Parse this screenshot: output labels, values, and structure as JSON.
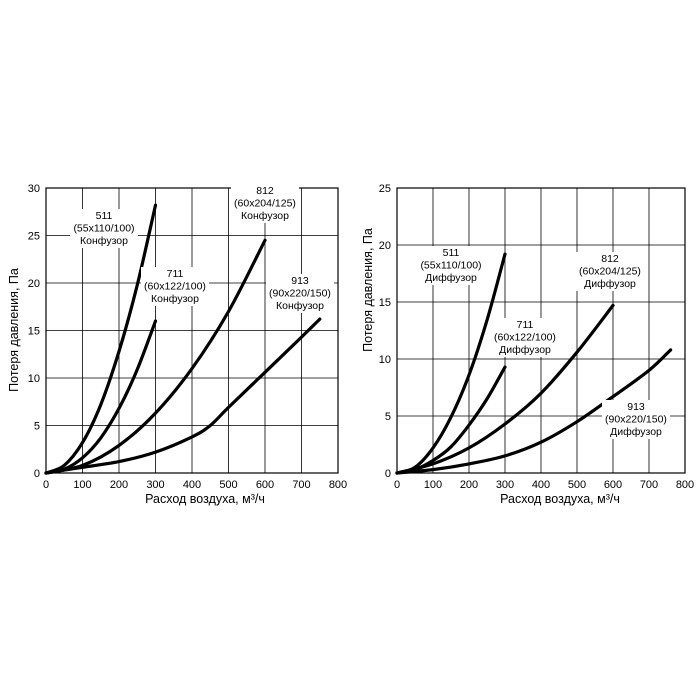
{
  "chart_data": [
    {
      "type": "line",
      "xlabel": "Расход воздуха, м³/ч",
      "ylabel": "Потеря давления, Па",
      "xlim": [
        0,
        800
      ],
      "ylim": [
        0,
        30
      ],
      "xticks": [
        "0",
        "100",
        "200",
        "300",
        "400",
        "500",
        "600",
        "700",
        "800"
      ],
      "yticks": [
        "0",
        "5",
        "10",
        "15",
        "20",
        "25",
        "30"
      ],
      "grid": "vertical and horizontal",
      "series": [
        {
          "name": "511 (55x110/100) Конфузор",
          "label": [
            "511",
            "(55x110/100)",
            "Конфузор"
          ],
          "x": [
            0,
            50,
            100,
            150,
            200,
            250,
            300
          ],
          "y": [
            0,
            0.8,
            3.2,
            7.2,
            12.8,
            19.8,
            28.2
          ]
        },
        {
          "name": "711 (60x122/100) Конфузор",
          "label": [
            "711",
            "(60x122/100)",
            "Конфузор"
          ],
          "x": [
            0,
            50,
            100,
            150,
            200,
            250,
            300
          ],
          "y": [
            0,
            0.4,
            1.6,
            3.7,
            6.8,
            10.9,
            16.0
          ]
        },
        {
          "name": "812 (60x204/125) Конфузор",
          "label": [
            "812",
            "(60x204/125)",
            "Конфузор"
          ],
          "x": [
            0,
            100,
            200,
            300,
            400,
            500,
            600
          ],
          "y": [
            0,
            0.8,
            2.9,
            6.3,
            11.0,
            17.0,
            24.5
          ]
        },
        {
          "name": "913 (90x220/150) Конфузор",
          "label": [
            "913",
            "(90x220/150)",
            "Конфузор"
          ],
          "x": [
            0,
            50,
            100,
            200,
            300,
            400,
            450,
            500,
            600,
            700,
            750
          ],
          "y": [
            0,
            0.3,
            0.6,
            1.2,
            2.2,
            3.8,
            5.0,
            6.9,
            10.6,
            14.3,
            16.2
          ]
        }
      ]
    },
    {
      "type": "line",
      "xlabel": "Расход воздуха, м³/ч",
      "ylabel": "Потеря давления, Па",
      "xlim": [
        0,
        800
      ],
      "ylim": [
        0,
        25
      ],
      "xticks": [
        "0",
        "100",
        "200",
        "300",
        "400",
        "500",
        "600",
        "700",
        "800"
      ],
      "yticks": [
        "0",
        "5",
        "10",
        "15",
        "20",
        "25"
      ],
      "grid": "vertical and horizontal",
      "series": [
        {
          "name": "511 (55x110/100) Диффузор",
          "label": [
            "511",
            "(55x110/100)",
            "Диффузор"
          ],
          "x": [
            0,
            50,
            100,
            150,
            200,
            250,
            300
          ],
          "y": [
            0,
            0.5,
            2.2,
            4.9,
            8.6,
            13.4,
            19.2
          ]
        },
        {
          "name": "711 (60x122/100) Диффузор",
          "label": [
            "711",
            "(60x122/100)",
            "Диффузор"
          ],
          "x": [
            0,
            50,
            100,
            150,
            200,
            250,
            300
          ],
          "y": [
            0,
            0.3,
            1.1,
            2.3,
            4.2,
            6.5,
            9.3
          ]
        },
        {
          "name": "812 (60x204/125) Диффузор",
          "label": [
            "812",
            "(60x204/125)",
            "Диффузор"
          ],
          "x": [
            0,
            100,
            200,
            300,
            400,
            500,
            600
          ],
          "y": [
            0,
            0.8,
            2.2,
            4.3,
            7.0,
            10.6,
            14.7
          ]
        },
        {
          "name": "913 (90x220/150) Диффузор",
          "label": [
            "913",
            "(90x220/150)",
            "Диффузор"
          ],
          "x": [
            0,
            100,
            200,
            300,
            400,
            500,
            600,
            700,
            760
          ],
          "y": [
            0,
            0.3,
            0.8,
            1.5,
            2.7,
            4.5,
            6.7,
            9.0,
            10.8
          ]
        }
      ]
    }
  ]
}
